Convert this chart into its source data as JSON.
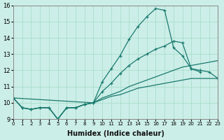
{
  "xlabel": "Humidex (Indice chaleur)",
  "bg_color": "#cceee8",
  "line_color": "#1a7a6e",
  "grid_color": "#aaddcc",
  "xlim": [
    0,
    23
  ],
  "ylim": [
    9,
    16
  ],
  "xticks": [
    0,
    1,
    2,
    3,
    4,
    5,
    6,
    7,
    8,
    9,
    10,
    11,
    12,
    13,
    14,
    15,
    16,
    17,
    18,
    19,
    20,
    21,
    22,
    23
  ],
  "yticks": [
    9,
    10,
    11,
    12,
    13,
    14,
    15,
    16
  ],
  "lines": [
    {
      "x": [
        0,
        1,
        2,
        3,
        4,
        5,
        6,
        7,
        8,
        9,
        10,
        11,
        12,
        13,
        14,
        15,
        16,
        17,
        18,
        19,
        20,
        21
      ],
      "y": [
        10.3,
        9.7,
        9.6,
        9.7,
        9.7,
        9.0,
        9.7,
        9.7,
        9.9,
        10.0,
        11.3,
        12.1,
        12.9,
        13.9,
        14.7,
        15.3,
        15.8,
        15.7,
        13.4,
        12.9,
        12.1,
        11.9
      ],
      "marker": true
    },
    {
      "x": [
        0,
        1,
        2,
        3,
        4,
        5,
        6,
        7,
        8,
        9,
        10,
        11,
        12,
        13,
        14,
        15,
        16,
        17,
        18,
        19,
        20,
        21,
        22,
        23
      ],
      "y": [
        10.3,
        9.7,
        9.6,
        9.7,
        9.7,
        9.0,
        9.7,
        9.7,
        9.9,
        10.0,
        10.7,
        11.2,
        11.8,
        12.3,
        12.7,
        13.0,
        13.3,
        13.5,
        13.8,
        13.7,
        12.1,
        12.0,
        11.9,
        11.5
      ],
      "marker": true
    },
    {
      "x": [
        0,
        1,
        2,
        3,
        4,
        5,
        6,
        7,
        8,
        9,
        10,
        11,
        12,
        13,
        14,
        15,
        16,
        17,
        18,
        19,
        20,
        21,
        22,
        23
      ],
      "y": [
        10.3,
        9.7,
        9.6,
        9.7,
        9.7,
        9.0,
        9.7,
        9.7,
        9.9,
        10.0,
        10.3,
        10.5,
        10.7,
        11.0,
        11.2,
        11.4,
        11.6,
        11.8,
        12.0,
        12.2,
        12.3,
        12.4,
        12.5,
        12.6
      ],
      "marker": false
    },
    {
      "x": [
        0,
        9,
        10,
        11,
        12,
        13,
        14,
        15,
        16,
        17,
        18,
        19,
        20,
        21,
        22,
        23
      ],
      "y": [
        10.3,
        10.0,
        10.2,
        10.4,
        10.5,
        10.7,
        10.9,
        11.0,
        11.1,
        11.2,
        11.3,
        11.4,
        11.5,
        11.5,
        11.5,
        11.5
      ],
      "marker": false
    }
  ]
}
